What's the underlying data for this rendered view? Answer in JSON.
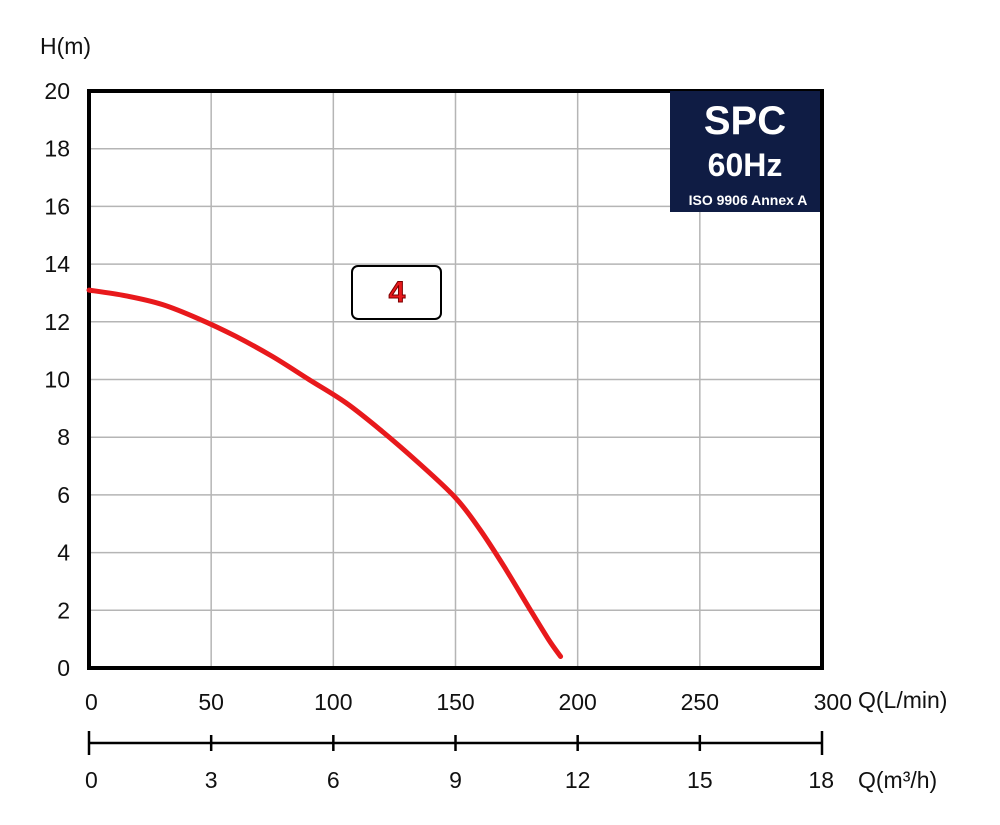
{
  "chart_data": {
    "type": "line",
    "ylabel": "H(m)",
    "xlabel": "Q(L/min)",
    "x2label": "Q(m³/h)",
    "xlim": [
      0,
      300
    ],
    "ylim": [
      0,
      20
    ],
    "x_ticks": [
      "0",
      "50",
      "100",
      "150",
      "200",
      "250",
      "300"
    ],
    "x2_ticks": [
      "0",
      "3",
      "6",
      "9",
      "12",
      "15",
      "18"
    ],
    "y_ticks": [
      "0",
      "2",
      "4",
      "6",
      "8",
      "10",
      "12",
      "14",
      "16",
      "18",
      "20"
    ],
    "grid": true,
    "series": [
      {
        "label": "4",
        "color": "#e8191c",
        "x": [
          0,
          15,
          30,
          45,
          60,
          75,
          90,
          105,
          120,
          135,
          150,
          160,
          170,
          180,
          188,
          193
        ],
        "y": [
          13.1,
          12.9,
          12.6,
          12.1,
          11.5,
          10.8,
          10.0,
          9.2,
          8.2,
          7.1,
          5.9,
          4.8,
          3.5,
          2.1,
          1.0,
          0.4
        ]
      }
    ]
  },
  "badge": {
    "model": "SPC",
    "frequency": "60Hz",
    "standard": "ISO 9906 Annex A",
    "background": "#0f1c44"
  }
}
